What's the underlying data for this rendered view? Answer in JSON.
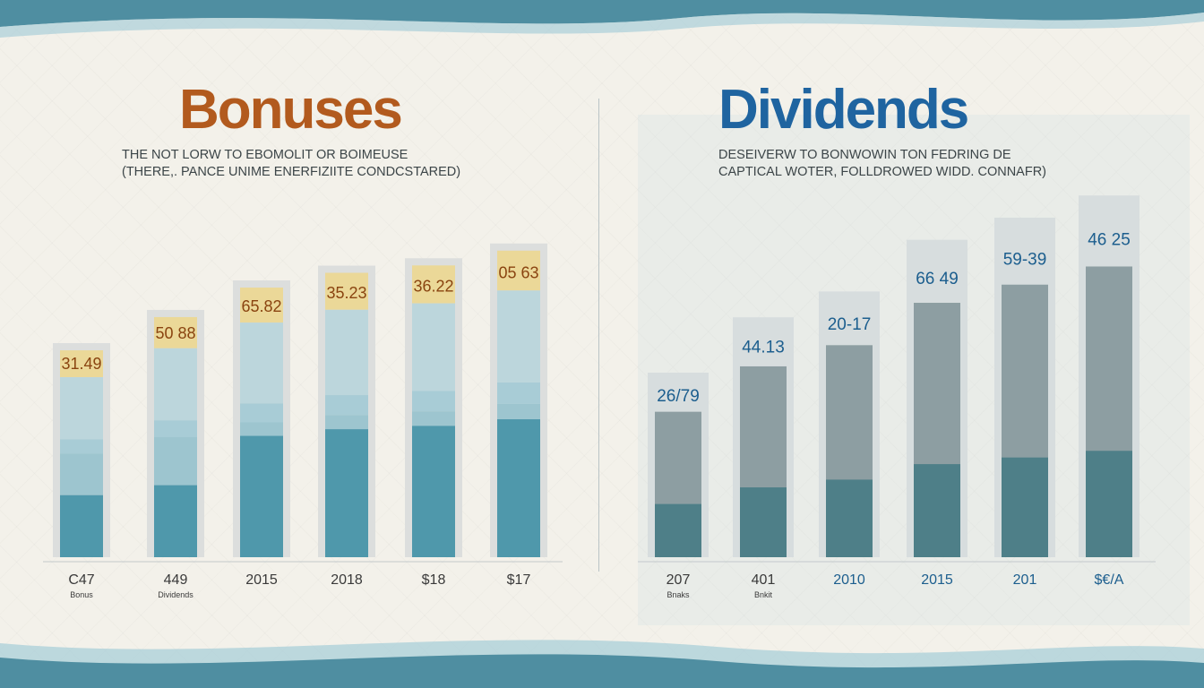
{
  "colors": {
    "wave_dark": "#4f8ea1",
    "wave_light": "#a9cfd8",
    "bar_frame": "#dcdedd",
    "bonus_top": "#ebd898",
    "bonus_light": "#bcd6dc",
    "bonus_band": "#a8ccd6",
    "bonus_mid": "#9dc5cf",
    "bonus_dark": "#4f98ab",
    "div_frame": "#d7ddde",
    "div_mid": "#8d9ea2",
    "div_dark": "#4e7f88",
    "value_left": "#8a4410",
    "value_right": "#1c5e8e",
    "tick_text": "#3a3a3a"
  },
  "chart_data": [
    {
      "type": "bar",
      "title": "Bonuses",
      "subtitle": [
        "THE NOT LORW TO EBOMOLIT OR BOIMEUSE",
        "(THERE,. PANCE UNIME ENERFIZIITE CONDCSTARED)"
      ],
      "categories": [
        "C47",
        "449",
        "2015",
        "2018",
        "$18",
        "$17"
      ],
      "category_sublabels": [
        "Bonus",
        "Dividends",
        "",
        "",
        "",
        ""
      ],
      "values": [
        31.49,
        50.88,
        65.82,
        35.23,
        36.22,
        "05 63"
      ],
      "value_labels": [
        "31.49",
        "50 88",
        "65.82",
        "35.23",
        "36.22",
        "05 63"
      ],
      "bar_levels": [
        0.58,
        0.67,
        0.75,
        0.79,
        0.81,
        0.85
      ]
    },
    {
      "type": "bar",
      "title": "Dividends",
      "subtitle": [
        "DESEIVERW TO BONWOWIN TON FEDRING DE",
        "CAPTICAL WOTER, FOLLDROWED WIDD. CONNAFR)"
      ],
      "categories": [
        "207",
        "401",
        "2010",
        "2015",
        "201",
        "$€/A"
      ],
      "category_sublabels": [
        "Bnaks",
        "Bnkit",
        "",
        "",
        "",
        ""
      ],
      "values": [
        26.79,
        44.13,
        20.17,
        66.49,
        59.39,
        46.25
      ],
      "value_labels": [
        "26/79",
        "44.13",
        "20-17",
        "66 49",
        "59-39",
        "46 25"
      ],
      "bar_levels": [
        0.5,
        0.65,
        0.72,
        0.86,
        0.92,
        0.98
      ]
    }
  ]
}
